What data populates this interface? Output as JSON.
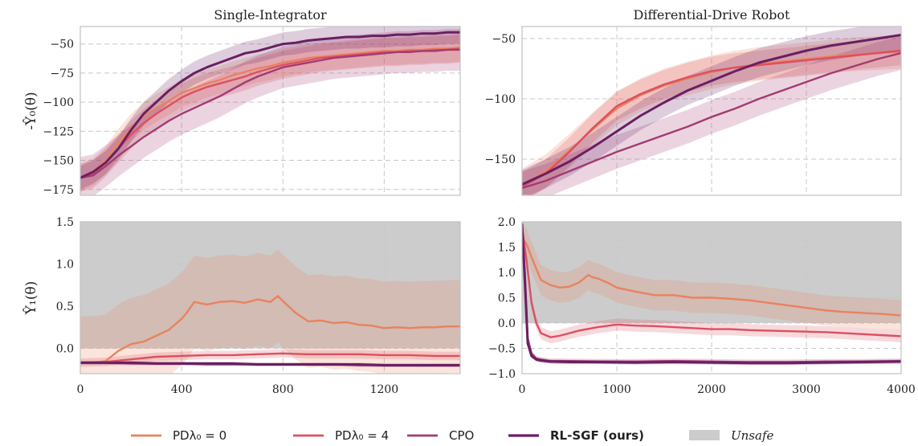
{
  "chart_data": [
    {
      "type": "line",
      "title": "Single-Integrator",
      "ylabel": "-Ŷ₀(θ)",
      "xlabel": "",
      "xlim": [
        0,
        1500
      ],
      "ylim": [
        -180,
        -35
      ],
      "xticks": [
        0,
        400,
        800,
        1200
      ],
      "yticks": [
        -175,
        -150,
        -125,
        -100,
        -75,
        -50
      ],
      "series": [
        {
          "name": "PDλ₀ = 0",
          "x": [
            0,
            50,
            100,
            150,
            200,
            250,
            300,
            350,
            400,
            450,
            500,
            550,
            600,
            650,
            700,
            750,
            800,
            850,
            900,
            950,
            1000,
            1050,
            1100,
            1150,
            1200,
            1250,
            1300,
            1350,
            1400,
            1450,
            1500
          ],
          "y": [
            -165,
            -160,
            -150,
            -135,
            -122,
            -112,
            -105,
            -99,
            -92,
            -88,
            -84,
            -81,
            -77,
            -74,
            -71,
            -69,
            -66,
            -64,
            -62,
            -61,
            -60,
            -59,
            -58,
            -57,
            -56,
            -56,
            -55,
            -55,
            -54,
            -54,
            -53
          ],
          "band": 12
        },
        {
          "name": "PDλ₀ = 4",
          "x": [
            0,
            50,
            100,
            150,
            200,
            250,
            300,
            350,
            400,
            450,
            500,
            550,
            600,
            650,
            700,
            750,
            800,
            850,
            900,
            950,
            1000,
            1050,
            1100,
            1150,
            1200,
            1250,
            1300,
            1350,
            1400,
            1450,
            1500
          ],
          "y": [
            -165,
            -162,
            -152,
            -140,
            -128,
            -118,
            -110,
            -103,
            -96,
            -91,
            -87,
            -84,
            -81,
            -78,
            -74,
            -71,
            -68,
            -66,
            -64,
            -62,
            -61,
            -60,
            -59,
            -58,
            -57,
            -57,
            -56,
            -56,
            -55,
            -55,
            -54
          ],
          "band": 12
        },
        {
          "name": "CPO",
          "x": [
            0,
            50,
            100,
            150,
            200,
            250,
            300,
            350,
            400,
            450,
            500,
            550,
            600,
            650,
            700,
            750,
            800,
            850,
            900,
            950,
            1000,
            1050,
            1100,
            1150,
            1200,
            1250,
            1300,
            1350,
            1400,
            1450,
            1500
          ],
          "y": [
            -165,
            -163,
            -155,
            -146,
            -138,
            -130,
            -123,
            -116,
            -110,
            -105,
            -100,
            -95,
            -89,
            -83,
            -78,
            -74,
            -70,
            -68,
            -66,
            -64,
            -62,
            -61,
            -60,
            -59,
            -58,
            -57,
            -57,
            -56,
            -56,
            -55,
            -55
          ],
          "band": 18
        },
        {
          "name": "RL-SGF (ours)",
          "x": [
            0,
            50,
            100,
            150,
            200,
            250,
            300,
            350,
            400,
            450,
            500,
            550,
            600,
            650,
            700,
            750,
            800,
            850,
            900,
            950,
            1000,
            1050,
            1100,
            1150,
            1200,
            1250,
            1300,
            1350,
            1400,
            1450,
            1500
          ],
          "y": [
            -165,
            -160,
            -152,
            -140,
            -124,
            -110,
            -100,
            -90,
            -82,
            -75,
            -70,
            -66,
            -62,
            -58,
            -56,
            -53,
            -50,
            -49,
            -47,
            -46,
            -45,
            -44,
            -44,
            -43,
            -43,
            -42,
            -42,
            -41,
            -41,
            -40,
            -40
          ],
          "band": 10
        }
      ]
    },
    {
      "type": "line",
      "title": "Differential-Drive Robot",
      "ylabel": "",
      "xlabel": "",
      "xlim": [
        0,
        4000
      ],
      "ylim": [
        -180,
        -40
      ],
      "xticks": [
        0,
        1000,
        2000,
        3000,
        4000
      ],
      "yticks": [
        -150,
        -100,
        -50
      ],
      "series": [
        {
          "name": "PDλ₀ = 0",
          "x": [
            0,
            250,
            500,
            750,
            1000,
            1250,
            1500,
            1750,
            2000,
            2250,
            2500,
            2750,
            3000,
            3250,
            3500,
            3750,
            4000
          ],
          "y": [
            -172,
            -160,
            -143,
            -125,
            -108,
            -97,
            -89,
            -83,
            -78,
            -74,
            -71,
            -69,
            -67,
            -65,
            -63,
            -62,
            -61
          ],
          "band": 14
        },
        {
          "name": "PDλ₀ = 4",
          "x": [
            0,
            250,
            500,
            750,
            1000,
            1250,
            1500,
            1750,
            2000,
            2250,
            2500,
            2750,
            3000,
            3250,
            3500,
            3750,
            4000
          ],
          "y": [
            -173,
            -162,
            -144,
            -124,
            -106,
            -96,
            -88,
            -82,
            -77,
            -74,
            -72,
            -70,
            -68,
            -66,
            -64,
            -62,
            -60
          ],
          "band": 12
        },
        {
          "name": "CPO",
          "x": [
            0,
            250,
            500,
            750,
            1000,
            1250,
            1500,
            1750,
            2000,
            2250,
            2500,
            2750,
            3000,
            3250,
            3500,
            3750,
            4000
          ],
          "y": [
            -174,
            -168,
            -160,
            -152,
            -144,
            -137,
            -130,
            -123,
            -115,
            -108,
            -100,
            -93,
            -86,
            -79,
            -73,
            -67,
            -62
          ],
          "band": 14
        },
        {
          "name": "RL-SGF (ours)",
          "x": [
            0,
            250,
            500,
            750,
            1000,
            1250,
            1500,
            1750,
            2000,
            2250,
            2500,
            2750,
            3000,
            3250,
            3500,
            3750,
            4000
          ],
          "y": [
            -171,
            -162,
            -152,
            -140,
            -127,
            -114,
            -103,
            -93,
            -85,
            -77,
            -70,
            -65,
            -60,
            -56,
            -53,
            -50,
            -47
          ],
          "band": 12
        }
      ]
    },
    {
      "type": "line",
      "title": "",
      "ylabel": "Ŷ₁(θ)",
      "xlabel": "",
      "xlim": [
        0,
        1500
      ],
      "ylim": [
        -0.3,
        1.5
      ],
      "unsafe_region": [
        0.0,
        1.5
      ],
      "xticks": [
        0,
        400,
        800,
        1200
      ],
      "yticks": [
        0.0,
        0.5,
        1.0,
        1.5
      ],
      "series": [
        {
          "name": "PDλ₀ = 0",
          "x": [
            0,
            50,
            100,
            150,
            200,
            250,
            300,
            350,
            400,
            420,
            450,
            500,
            550,
            600,
            650,
            700,
            750,
            780,
            800,
            850,
            900,
            950,
            1000,
            1050,
            1100,
            1150,
            1200,
            1250,
            1300,
            1350,
            1400,
            1450,
            1500
          ],
          "y": [
            -0.17,
            -0.17,
            -0.15,
            -0.03,
            0.05,
            0.08,
            0.15,
            0.22,
            0.35,
            0.42,
            0.55,
            0.52,
            0.55,
            0.56,
            0.54,
            0.58,
            0.55,
            0.62,
            0.56,
            0.42,
            0.32,
            0.33,
            0.3,
            0.31,
            0.28,
            0.27,
            0.24,
            0.25,
            0.24,
            0.25,
            0.25,
            0.26,
            0.26
          ],
          "band": 0.55
        },
        {
          "name": "PDλ₀ = 4",
          "x": [
            0,
            100,
            200,
            300,
            400,
            500,
            600,
            700,
            800,
            900,
            1000,
            1100,
            1200,
            1300,
            1400,
            1500
          ],
          "y": [
            -0.17,
            -0.16,
            -0.13,
            -0.1,
            -0.09,
            -0.08,
            -0.08,
            -0.07,
            -0.06,
            -0.07,
            -0.07,
            -0.07,
            -0.08,
            -0.08,
            -0.09,
            -0.09
          ],
          "band": 0.05
        },
        {
          "name": "CPO",
          "x": [
            0,
            100,
            200,
            300,
            400,
            500,
            600,
            700,
            800,
            900,
            1000,
            1100,
            1200,
            1300,
            1400,
            1500
          ],
          "y": [
            -0.17,
            -0.17,
            -0.18,
            -0.18,
            -0.18,
            -0.19,
            -0.19,
            -0.19,
            -0.19,
            -0.19,
            -0.19,
            -0.2,
            -0.2,
            -0.2,
            -0.2,
            -0.2
          ],
          "band": 0.02
        },
        {
          "name": "RL-SGF (ours)",
          "x": [
            0,
            100,
            200,
            300,
            400,
            500,
            600,
            700,
            800,
            900,
            1000,
            1100,
            1200,
            1300,
            1400,
            1500
          ],
          "y": [
            -0.17,
            -0.17,
            -0.17,
            -0.18,
            -0.18,
            -0.18,
            -0.18,
            -0.19,
            -0.19,
            -0.19,
            -0.19,
            -0.19,
            -0.2,
            -0.2,
            -0.2,
            -0.2
          ],
          "band": 0.02
        }
      ]
    },
    {
      "type": "line",
      "title": "",
      "ylabel": "",
      "xlabel": "",
      "xlim": [
        0,
        4000
      ],
      "ylim": [
        -1.0,
        2.0
      ],
      "unsafe_region": [
        0.0,
        2.0
      ],
      "xticks": [
        0,
        1000,
        2000,
        3000,
        4000
      ],
      "yticks": [
        -1.0,
        -0.5,
        0.0,
        0.5,
        1.0,
        1.5,
        2.0
      ],
      "series": [
        {
          "name": "PDλ₀ = 0",
          "x": [
            0,
            50,
            100,
            200,
            300,
            400,
            500,
            600,
            700,
            750,
            800,
            900,
            1000,
            1200,
            1400,
            1600,
            1800,
            2000,
            2200,
            2400,
            2600,
            2800,
            3000,
            3200,
            3400,
            3600,
            3800,
            4000
          ],
          "y": [
            1.7,
            1.55,
            1.3,
            0.85,
            0.75,
            0.7,
            0.72,
            0.8,
            0.95,
            0.9,
            0.88,
            0.8,
            0.7,
            0.62,
            0.55,
            0.55,
            0.5,
            0.5,
            0.48,
            0.45,
            0.4,
            0.35,
            0.3,
            0.25,
            0.22,
            0.2,
            0.18,
            0.15
          ],
          "band": 0.3
        },
        {
          "name": "PDλ₀ = 4",
          "x": [
            0,
            50,
            100,
            150,
            200,
            300,
            400,
            500,
            600,
            800,
            1000,
            1200,
            1400,
            1600,
            1800,
            2000,
            2200,
            2400,
            2600,
            2800,
            3000,
            3200,
            3400,
            3600,
            3800,
            4000
          ],
          "y": [
            1.9,
            1.2,
            0.4,
            0.0,
            -0.2,
            -0.28,
            -0.25,
            -0.2,
            -0.15,
            -0.08,
            -0.03,
            -0.05,
            -0.06,
            -0.08,
            -0.1,
            -0.12,
            -0.12,
            -0.14,
            -0.15,
            -0.16,
            -0.17,
            -0.18,
            -0.2,
            -0.22,
            -0.24,
            -0.26
          ],
          "band": 0.12
        },
        {
          "name": "CPO",
          "x": [
            0,
            30,
            60,
            100,
            150,
            200,
            300,
            500,
            800,
            1200,
            1600,
            2000,
            2400,
            2800,
            3200,
            3600,
            4000
          ],
          "y": [
            1.9,
            1.0,
            -0.3,
            -0.6,
            -0.7,
            -0.72,
            -0.75,
            -0.75,
            -0.76,
            -0.76,
            -0.75,
            -0.76,
            -0.77,
            -0.77,
            -0.76,
            -0.76,
            -0.75
          ],
          "band": 0.05
        },
        {
          "name": "RL-SGF (ours)",
          "x": [
            0,
            30,
            60,
            100,
            150,
            200,
            300,
            500,
            800,
            1200,
            1600,
            2000,
            2400,
            2800,
            3200,
            3600,
            4000
          ],
          "y": [
            1.95,
            0.8,
            -0.4,
            -0.65,
            -0.72,
            -0.74,
            -0.76,
            -0.77,
            -0.77,
            -0.78,
            -0.77,
            -0.78,
            -0.79,
            -0.79,
            -0.78,
            -0.77,
            -0.76
          ],
          "band": 0.04
        }
      ]
    }
  ],
  "legend": {
    "placement": "bottom",
    "items": [
      {
        "label": "PDλ₀ = 0",
        "color": "#e9825f",
        "kind": "line",
        "bold": false
      },
      {
        "label": "PDλ₀ = 4",
        "color": "#dc5060",
        "kind": "line",
        "bold": false
      },
      {
        "label": "CPO",
        "color": "#a23b72",
        "kind": "line",
        "bold": false
      },
      {
        "label": "RL-SGF (ours)",
        "color": "#6a1f63",
        "kind": "line",
        "bold": true
      },
      {
        "label": "Unsafe",
        "color": "#cccccc",
        "kind": "patch",
        "italic": true
      }
    ]
  },
  "colors": {
    "unsafe": "#cccccc",
    "series": [
      "#e9825f",
      "#dc5060",
      "#a23b72",
      "#6a1f63"
    ]
  }
}
